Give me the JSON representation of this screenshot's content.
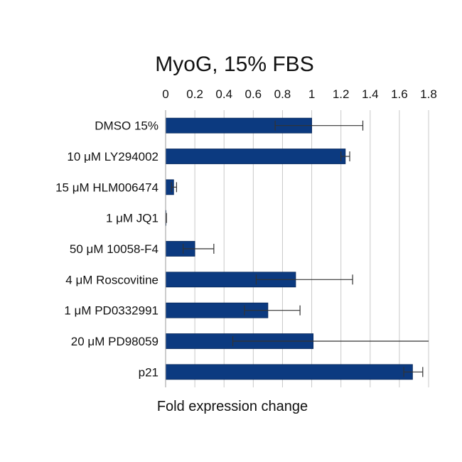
{
  "chart_data": {
    "type": "bar",
    "orientation": "horizontal",
    "title": "MyoG, 15% FBS",
    "xlabel": "Fold expression change",
    "ylabel": "",
    "xlim": [
      0,
      1.8
    ],
    "xticks": [
      "0",
      "0.2",
      "0.4",
      "0.6",
      "0.8",
      "1",
      "1.2",
      "1.4",
      "1.6",
      "1.8"
    ],
    "x_axis_position": "top",
    "grid": "vertical",
    "legend": "none",
    "bar_color": "#0c3a80",
    "categories": [
      "DMSO 15%",
      "10 μM LY294002",
      "15 μM HLM006474",
      "1 μM JQ1",
      "50 μM 10058-F4",
      "4 μM Roscovitine",
      "1 μM PD0332991",
      "20 μM PD98059",
      "p21"
    ],
    "values": [
      1.0,
      1.23,
      0.055,
      0.003,
      0.2,
      0.89,
      0.7,
      1.01,
      1.69
    ],
    "error_low": [
      0.75,
      1.2,
      0.04,
      0.0,
      0.12,
      0.62,
      0.54,
      0.46,
      1.63
    ],
    "error_high": [
      1.35,
      1.26,
      0.075,
      0.006,
      0.33,
      1.28,
      0.92,
      1.8,
      1.76
    ]
  }
}
